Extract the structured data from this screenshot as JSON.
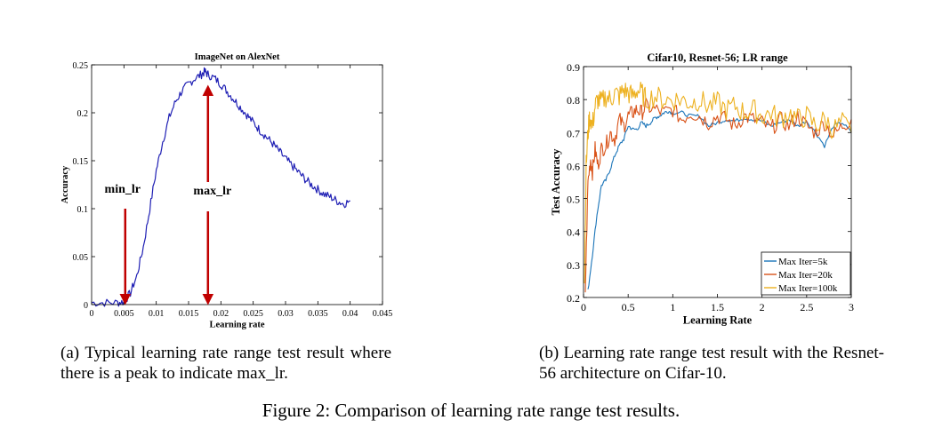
{
  "chart_data": [
    {
      "type": "line",
      "title": "ImageNet on AlexNet",
      "xlabel": "Learning rate",
      "ylabel": "Accuracy",
      "xlim": [
        0,
        0.045
      ],
      "ylim": [
        0,
        0.25
      ],
      "xticks": [
        "0",
        "0.005",
        "0.01",
        "0.015",
        "0.02",
        "0.025",
        "0.03",
        "0.035",
        "0.04",
        "0.045"
      ],
      "yticks": [
        "0",
        "0.05",
        "0.1",
        "0.15",
        "0.2",
        "0.25"
      ],
      "series": [
        {
          "color": "#1f1fb4",
          "x": [
            0,
            0.002,
            0.004,
            0.005,
            0.006,
            0.007,
            0.008,
            0.009,
            0.01,
            0.011,
            0.012,
            0.013,
            0.014,
            0.015,
            0.016,
            0.017,
            0.0175,
            0.018,
            0.019,
            0.02,
            0.021,
            0.022,
            0.023,
            0.024,
            0.025,
            0.026,
            0.027,
            0.028,
            0.029,
            0.03,
            0.031,
            0.032,
            0.033,
            0.034,
            0.035,
            0.036,
            0.037,
            0.038,
            0.039,
            0.04
          ],
          "y": [
            0.002,
            0.002,
            0.002,
            0.003,
            0.012,
            0.03,
            0.06,
            0.1,
            0.14,
            0.17,
            0.195,
            0.212,
            0.223,
            0.23,
            0.236,
            0.24,
            0.243,
            0.24,
            0.236,
            0.23,
            0.222,
            0.214,
            0.206,
            0.198,
            0.19,
            0.182,
            0.175,
            0.168,
            0.16,
            0.152,
            0.145,
            0.138,
            0.131,
            0.125,
            0.12,
            0.115,
            0.112,
            0.108,
            0.105,
            0.108
          ]
        }
      ],
      "annotations": [
        {
          "text": "min_lr",
          "x": 0.0052,
          "color": "#c00000"
        },
        {
          "text": "max_lr",
          "x": 0.018,
          "color": "#c00000"
        }
      ]
    },
    {
      "type": "line",
      "title": "Cifar10, Resnet-56; LR range",
      "xlabel": "Learning Rate",
      "ylabel": "Test Accuracy",
      "xlim": [
        0,
        3
      ],
      "ylim": [
        0.2,
        0.9
      ],
      "xticks": [
        "0",
        "0.5",
        "1",
        "1.5",
        "2",
        "2.5",
        "3"
      ],
      "yticks": [
        "0.2",
        "0.3",
        "0.4",
        "0.5",
        "0.6",
        "0.7",
        "0.8",
        "0.9"
      ],
      "legend": "bottom-right",
      "series": [
        {
          "name": "Max Iter=5k",
          "color": "#1a74b8",
          "x": [
            0.05,
            0.1,
            0.15,
            0.2,
            0.25,
            0.3,
            0.35,
            0.4,
            0.45,
            0.5,
            0.55,
            0.6,
            0.65,
            0.7,
            0.75,
            0.8,
            0.85,
            0.9,
            0.95,
            1.0,
            1.1,
            1.2,
            1.3,
            1.4,
            1.5,
            1.6,
            1.7,
            1.8,
            1.9,
            2.0,
            2.1,
            2.2,
            2.3,
            2.4,
            2.5,
            2.6,
            2.7,
            2.8,
            2.9,
            3.0
          ],
          "y": [
            0.22,
            0.33,
            0.45,
            0.54,
            0.555,
            0.59,
            0.63,
            0.66,
            0.68,
            0.72,
            0.71,
            0.71,
            0.73,
            0.72,
            0.73,
            0.745,
            0.75,
            0.76,
            0.765,
            0.76,
            0.76,
            0.75,
            0.75,
            0.72,
            0.73,
            0.74,
            0.735,
            0.745,
            0.74,
            0.735,
            0.72,
            0.73,
            0.74,
            0.72,
            0.735,
            0.7,
            0.66,
            0.72,
            0.73,
            0.7
          ]
        },
        {
          "name": "Max Iter=20k",
          "color": "#d95319",
          "x": [
            0.02,
            0.05,
            0.08,
            0.1,
            0.13,
            0.16,
            0.2,
            0.25,
            0.3,
            0.35,
            0.4,
            0.45,
            0.5,
            0.55,
            0.6,
            0.65,
            0.7,
            0.8,
            0.9,
            1.0,
            1.1,
            1.2,
            1.3,
            1.4,
            1.5,
            1.6,
            1.7,
            1.8,
            1.9,
            2.0,
            2.1,
            2.2,
            2.3,
            2.4,
            2.5,
            2.6,
            2.7,
            2.8,
            2.9,
            3.0
          ],
          "y": [
            0.22,
            0.55,
            0.62,
            0.58,
            0.65,
            0.6,
            0.65,
            0.66,
            0.7,
            0.68,
            0.74,
            0.72,
            0.75,
            0.76,
            0.77,
            0.76,
            0.78,
            0.77,
            0.76,
            0.77,
            0.74,
            0.76,
            0.75,
            0.73,
            0.75,
            0.74,
            0.72,
            0.75,
            0.74,
            0.73,
            0.71,
            0.74,
            0.72,
            0.75,
            0.72,
            0.7,
            0.73,
            0.69,
            0.72,
            0.74
          ]
        },
        {
          "name": "Max Iter=100k",
          "color": "#edb120",
          "x": [
            0.01,
            0.03,
            0.05,
            0.07,
            0.1,
            0.13,
            0.16,
            0.2,
            0.25,
            0.3,
            0.35,
            0.4,
            0.45,
            0.5,
            0.55,
            0.6,
            0.65,
            0.7,
            0.8,
            0.9,
            1.0,
            1.1,
            1.2,
            1.3,
            1.4,
            1.5,
            1.6,
            1.7,
            1.8,
            1.9,
            2.0,
            2.1,
            2.2,
            2.3,
            2.4,
            2.5,
            2.6,
            2.7,
            2.8,
            2.9,
            3.0
          ],
          "y": [
            0.25,
            0.6,
            0.7,
            0.75,
            0.72,
            0.78,
            0.8,
            0.79,
            0.81,
            0.8,
            0.82,
            0.81,
            0.83,
            0.82,
            0.81,
            0.83,
            0.82,
            0.8,
            0.81,
            0.8,
            0.8,
            0.8,
            0.79,
            0.8,
            0.78,
            0.79,
            0.77,
            0.78,
            0.76,
            0.77,
            0.75,
            0.76,
            0.74,
            0.76,
            0.74,
            0.75,
            0.72,
            0.74,
            0.71,
            0.73,
            0.7
          ]
        }
      ]
    }
  ],
  "captions": {
    "a": "(a) Typical learning rate range test result where there is a peak to indicate max_lr.",
    "b": "(b) Learning rate range test result with the Resnet-56 architecture on Cifar-10.",
    "figure": "Figure 2: Comparison of learning rate range test results."
  }
}
